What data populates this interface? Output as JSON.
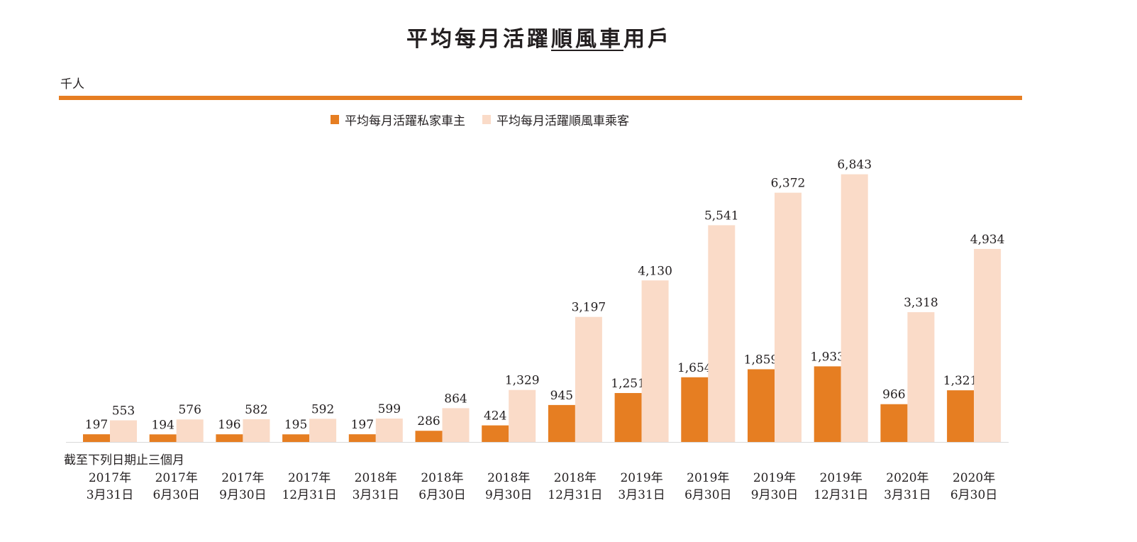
{
  "chart_data": {
    "type": "bar",
    "title": {
      "before": "平均每月活躍",
      "underlined": "順風車",
      "after": "用戶"
    },
    "unit_label": "千人",
    "xlabel": "截至下列日期止三個月",
    "categories": [
      [
        "2017年",
        "3月31日"
      ],
      [
        "2017年",
        "6月30日"
      ],
      [
        "2017年",
        "9月30日"
      ],
      [
        "2017年",
        "12月31日"
      ],
      [
        "2018年",
        "3月31日"
      ],
      [
        "2018年",
        "6月30日"
      ],
      [
        "2018年",
        "9月30日"
      ],
      [
        "2018年",
        "12月31日"
      ],
      [
        "2019年",
        "3月31日"
      ],
      [
        "2019年",
        "6月30日"
      ],
      [
        "2019年",
        "9月30日"
      ],
      [
        "2019年",
        "12月31日"
      ],
      [
        "2020年",
        "3月31日"
      ],
      [
        "2020年",
        "6月30日"
      ]
    ],
    "series": [
      {
        "name": "平均每月活躍私家車主",
        "color": "#e67e22",
        "values": [
          197,
          194,
          196,
          195,
          197,
          286,
          424,
          945,
          1251,
          1654,
          1859,
          1933,
          966,
          1321
        ]
      },
      {
        "name": "平均每月活躍順風車乘客",
        "color": "#fadbc8",
        "values": [
          553,
          576,
          582,
          592,
          599,
          864,
          1329,
          3197,
          4130,
          5541,
          6372,
          6843,
          3318,
          4934
        ]
      }
    ],
    "legend_position": "top",
    "grid": false,
    "ylim": [
      0,
      7000
    ]
  }
}
